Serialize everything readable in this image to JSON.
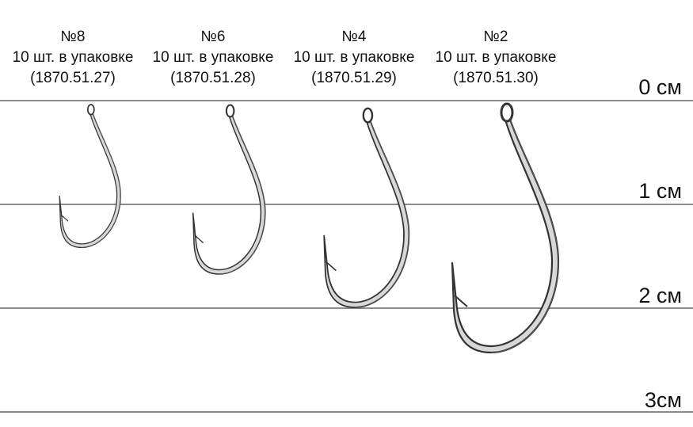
{
  "scale_labels": [
    "0 см",
    "1 см",
    "2 см",
    "3см"
  ],
  "hooks": [
    {
      "size": "№8",
      "pack": "10 шт.  в упаковке",
      "code": "(1870.51.27)"
    },
    {
      "size": "№6",
      "pack": "10 шт.  в упаковке",
      "code": "(1870.51.28)"
    },
    {
      "size": "№4",
      "pack": "10 шт.  в упаковке",
      "code": "(1870.51.29)"
    },
    {
      "size": "№2",
      "pack": "10 шт.  в упаковке",
      "code": "(1870.51.30)"
    }
  ],
  "colors": {
    "rule": "#8c8c8c",
    "hook": "#3a3a3a"
  }
}
